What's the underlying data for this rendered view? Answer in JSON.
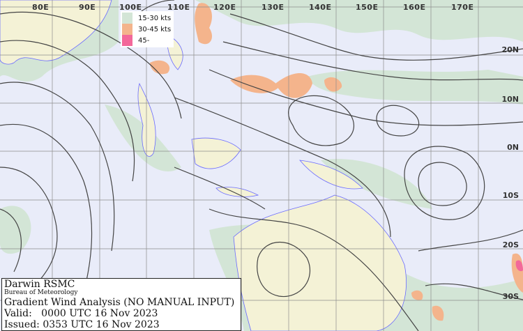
{
  "colors": {
    "background": "#e9ecf9",
    "wind_15_30": "#d3e5d6",
    "wind_30_45": "#f4b48c",
    "wind_45_plus": "#f3689a",
    "land": "#f4f2d6",
    "coast": "#6a6aff",
    "streamline": "#444444",
    "grid": "#8c8c8c"
  },
  "longitude_labels": [
    "80E",
    "90E",
    "100E",
    "110E",
    "120E",
    "130E",
    "140E",
    "150E",
    "160E",
    "170E"
  ],
  "latitude_labels": [
    "20N",
    "10N",
    "0N",
    "10S",
    "20S",
    "30S"
  ],
  "legend": [
    {
      "label": "15-30 kts",
      "color": "#d3e5d6"
    },
    {
      "label": "30-45 kts",
      "color": "#f4b48c"
    },
    {
      "label": "45-",
      "color": "#f3689a"
    }
  ],
  "info": {
    "center": "Darwin RSMC",
    "agency": "Bureau of Meteorology",
    "title": "Gradient Wind Analysis (NO MANUAL INPUT)",
    "valid": "Valid:   0000 UTC 16 Nov 2023",
    "issued": "Issued: 0353 UTC 16 Nov 2023"
  }
}
